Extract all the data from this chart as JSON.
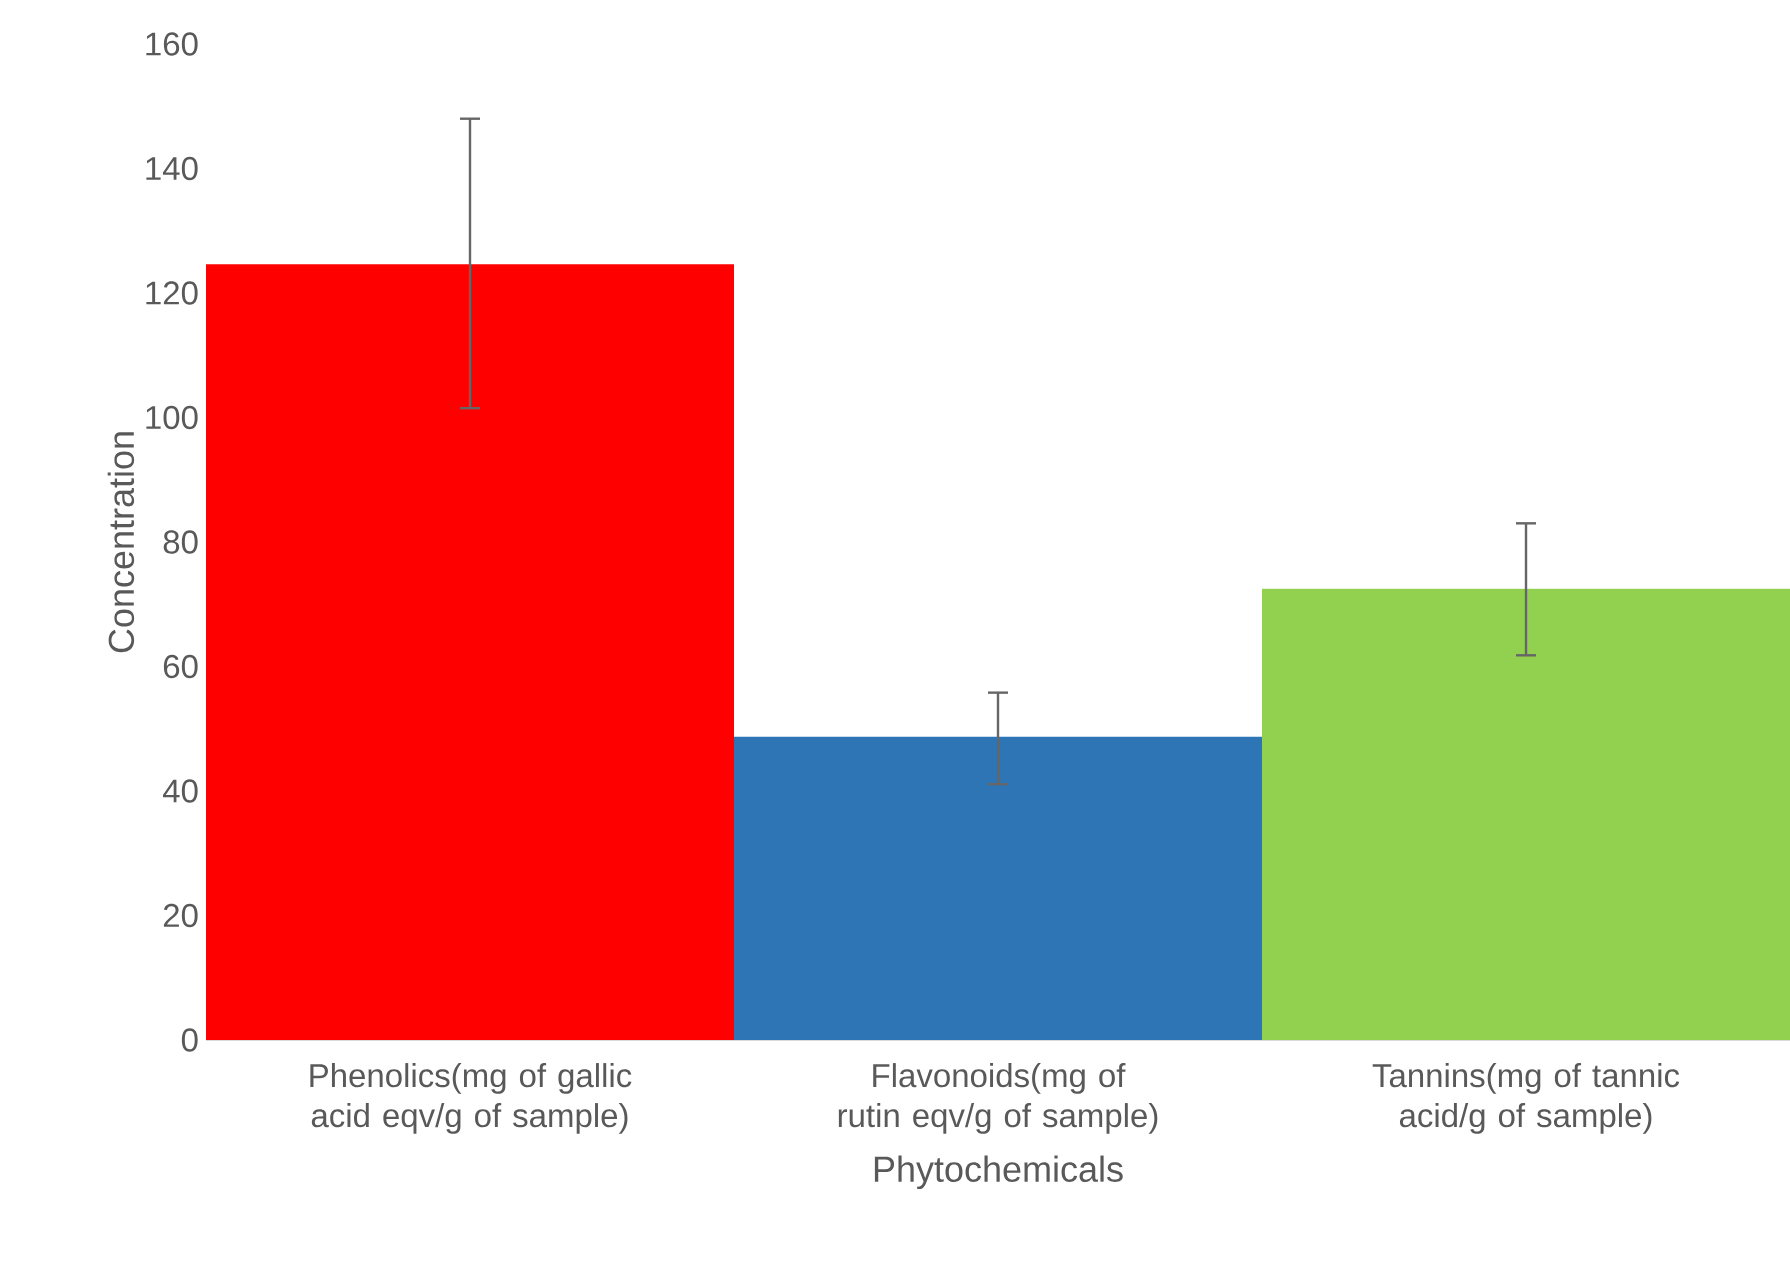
{
  "chart_data": {
    "type": "bar",
    "xlabel": "Phytochemicals",
    "ylabel": "Concentration",
    "categories": [
      "Phenolics(mg of gallic acid eqv/g of sample)",
      "Flavonoids(mg of rutin eqv/g of sample)",
      "Tannins(mg of tannic acid/g of sample)"
    ],
    "values": [
      124.6,
      48.7,
      72.5
    ],
    "errors": [
      [
        101.5,
        148
      ],
      [
        41.1,
        55.8
      ],
      [
        61.8,
        83
      ]
    ],
    "colors": [
      "#ff0000",
      "#2e75b6",
      "#92d050"
    ],
    "ylim": [
      0,
      160
    ],
    "yticks": [
      0,
      20,
      40,
      60,
      80,
      100,
      120,
      140,
      160
    ]
  }
}
